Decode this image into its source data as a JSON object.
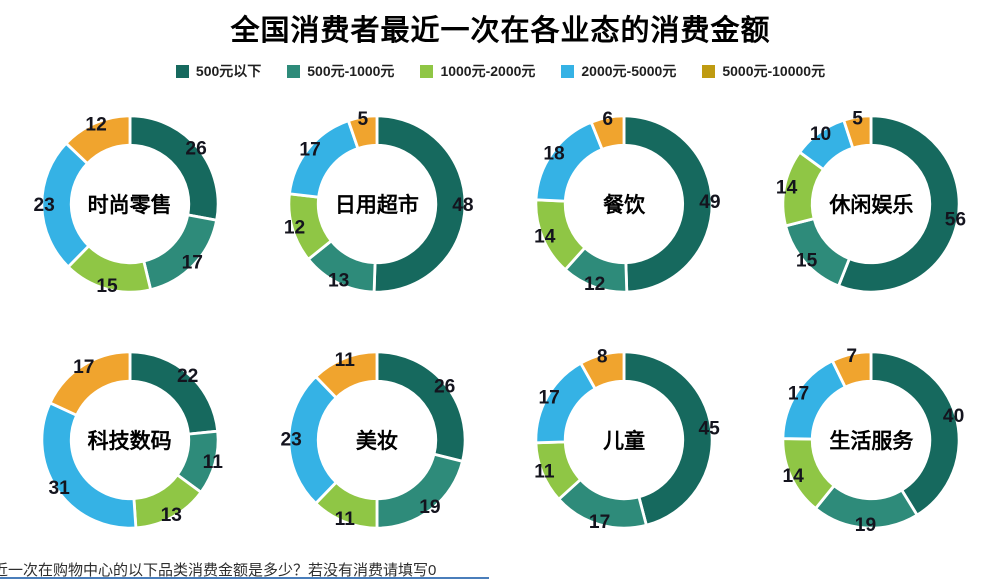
{
  "title": "全国消费者最近一次在各业态的消费金额",
  "legend": {
    "items": [
      {
        "label": "500元以下",
        "color": "#16695e"
      },
      {
        "label": "500元-1000元",
        "color": "#2e8b7a"
      },
      {
        "label": "1000元-2000元",
        "color": "#8fc645"
      },
      {
        "label": "2000元-5000元",
        "color": "#35b2e5"
      },
      {
        "label": "5000元-10000元",
        "color": "#bf9b11"
      }
    ]
  },
  "footer": {
    "text": "近一次在购物中心的以下品类消费金额是多少？若没有消费请填写0",
    "underline_color": "#4a7ebb"
  },
  "chart_data": {
    "type": "pie",
    "subtype": "donut",
    "title": "全国消费者最近一次在各业态的消费金额",
    "legend_position": "top",
    "series_labels": [
      "500元以下",
      "500元-1000元",
      "1000元-2000元",
      "2000元-5000元",
      "5000元-10000元"
    ],
    "colors": [
      "#16695e",
      "#2e8b7a",
      "#8fc645",
      "#35b2e5",
      "#f0a42e"
    ],
    "charts": [
      {
        "name": "时尚零售",
        "values": [
          26,
          17,
          15,
          23,
          12
        ]
      },
      {
        "name": "日用超市",
        "values": [
          48,
          13,
          12,
          17,
          5
        ]
      },
      {
        "name": "餐饮",
        "values": [
          49,
          12,
          14,
          18,
          6
        ]
      },
      {
        "name": "休闲娱乐",
        "values": [
          56,
          15,
          14,
          10,
          5
        ]
      },
      {
        "name": "科技数码",
        "values": [
          22,
          11,
          13,
          31,
          17
        ]
      },
      {
        "name": "美妆",
        "values": [
          26,
          19,
          11,
          23,
          11
        ]
      },
      {
        "name": "儿童",
        "values": [
          45,
          17,
          11,
          17,
          8
        ]
      },
      {
        "name": "生活服务",
        "values": [
          40,
          19,
          14,
          17,
          7
        ]
      }
    ]
  }
}
